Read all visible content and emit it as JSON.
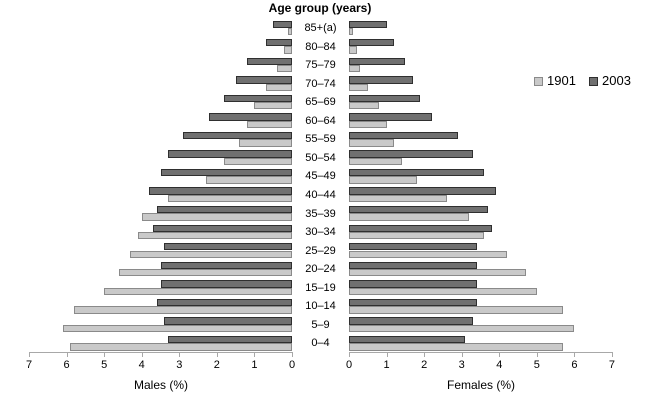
{
  "chart_data": {
    "type": "bar",
    "variant": "population_pyramid",
    "title": "Age group (years)",
    "legend_entries": [
      {
        "label": "1901",
        "color": "#c9c9c9"
      },
      {
        "label": "2003",
        "color": "#707070"
      }
    ],
    "left_axis": {
      "label": "Males (%)",
      "tick_labels": [
        "7",
        "6",
        "5",
        "4",
        "3",
        "2",
        "1",
        "0"
      ],
      "min": 0,
      "max": 7,
      "direction": "right-to-left"
    },
    "right_axis": {
      "label": "Females (%)",
      "tick_labels": [
        "0",
        "1",
        "2",
        "3",
        "4",
        "5",
        "6",
        "7"
      ],
      "min": 0,
      "max": 7,
      "direction": "left-to-right"
    },
    "grid": false,
    "legend_position": "right",
    "categories_top_to_bottom": [
      "85+(a)",
      "80–84",
      "75–79",
      "70–74",
      "65–69",
      "60–64",
      "55–59",
      "50–54",
      "45–49",
      "40–44",
      "35–39",
      "30–34",
      "25–29",
      "20–24",
      "15–19",
      "10–14",
      "5–9",
      "0–4"
    ],
    "series": [
      {
        "name": "Males 1901",
        "side": "male",
        "year": "1901",
        "values": [
          0.1,
          0.2,
          0.4,
          0.7,
          1.0,
          1.2,
          1.4,
          1.8,
          2.3,
          3.3,
          4.0,
          4.1,
          4.3,
          4.6,
          5.0,
          5.8,
          6.1,
          5.9
        ]
      },
      {
        "name": "Males 2003",
        "side": "male",
        "year": "2003",
        "values": [
          0.5,
          0.7,
          1.2,
          1.5,
          1.8,
          2.2,
          2.9,
          3.3,
          3.5,
          3.8,
          3.6,
          3.7,
          3.4,
          3.5,
          3.5,
          3.6,
          3.4,
          3.3
        ]
      },
      {
        "name": "Females 1901",
        "side": "female",
        "year": "1901",
        "values": [
          0.1,
          0.2,
          0.3,
          0.5,
          0.8,
          1.0,
          1.2,
          1.4,
          1.8,
          2.6,
          3.2,
          3.6,
          4.2,
          4.7,
          5.0,
          5.7,
          6.0,
          5.7
        ]
      },
      {
        "name": "Females 2003",
        "side": "female",
        "year": "2003",
        "values": [
          1.0,
          1.2,
          1.5,
          1.7,
          1.9,
          2.2,
          2.9,
          3.3,
          3.6,
          3.9,
          3.7,
          3.8,
          3.4,
          3.4,
          3.4,
          3.4,
          3.3,
          3.1
        ]
      }
    ]
  },
  "colors": {
    "bar_1901_fill": "#c9c9c9",
    "bar_1901_border": "#8a8a8a",
    "bar_2003_fill": "#707070",
    "bar_2003_border": "#2f2f2f",
    "axis_line": "#a8a8a8",
    "text": "#000000",
    "background": "#ffffff"
  }
}
